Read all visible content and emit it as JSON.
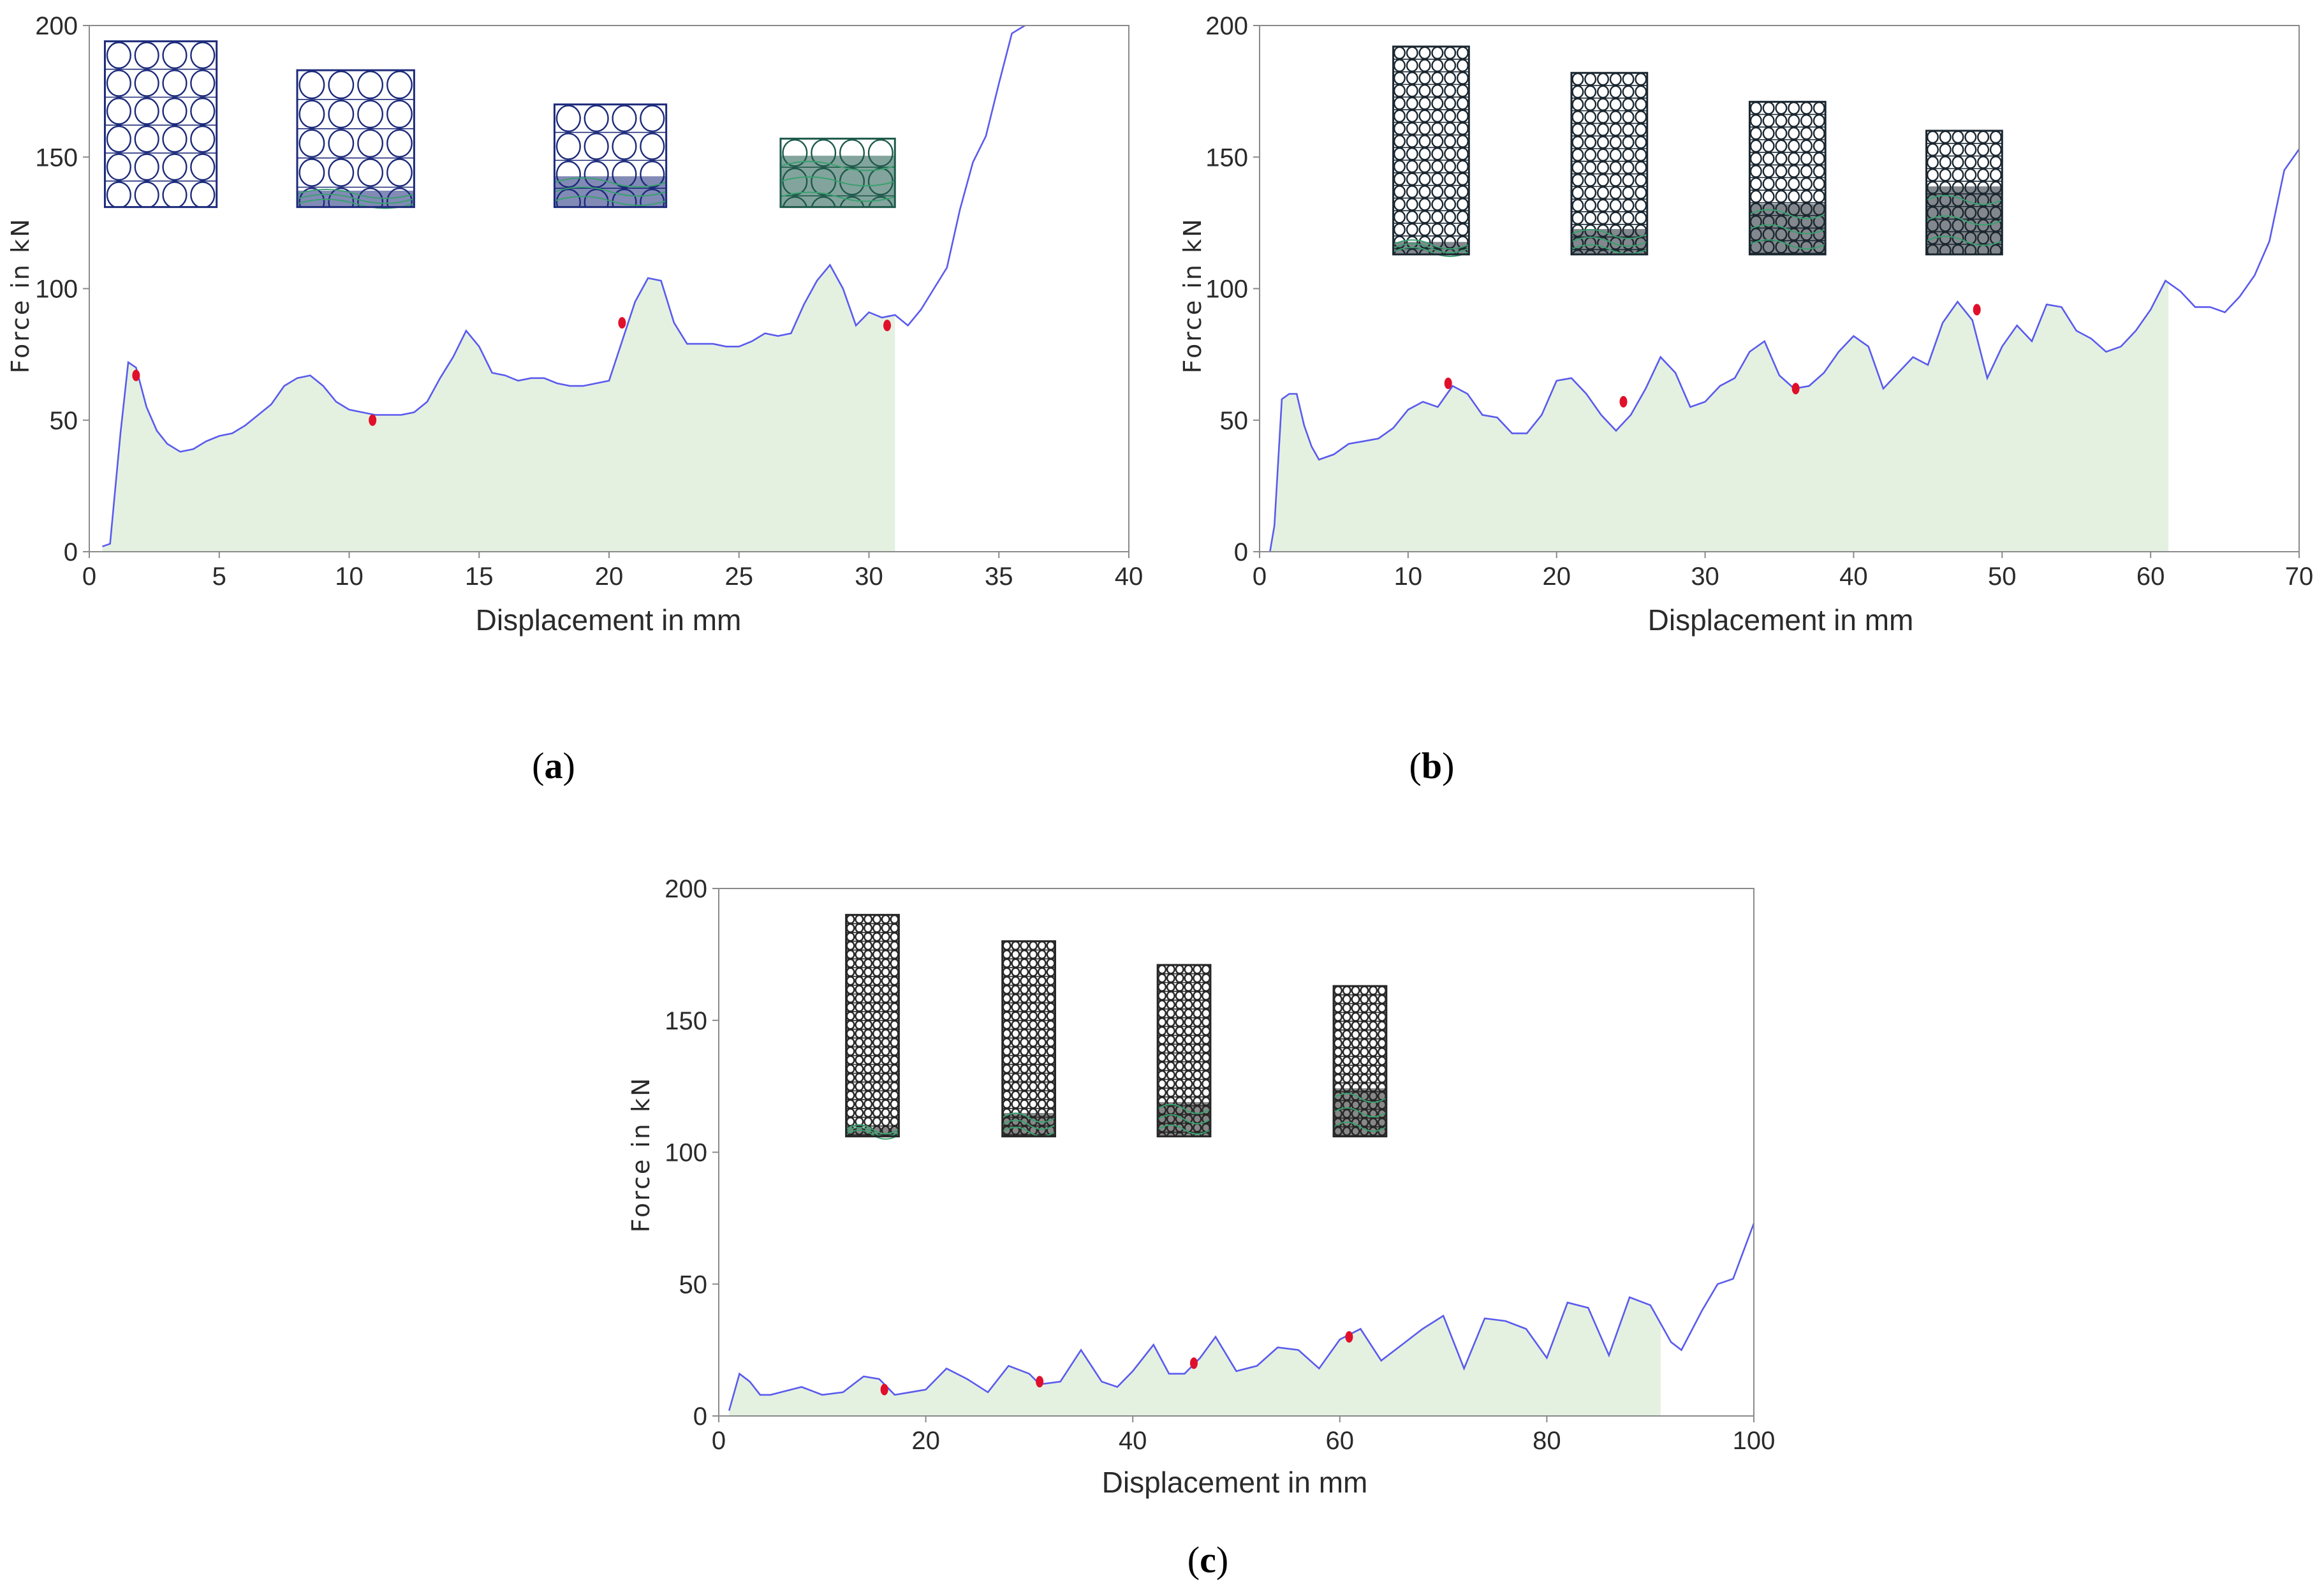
{
  "chart_data": [
    {
      "id": "a",
      "type": "line",
      "caption_letter": "a",
      "xlabel": "Displacement in mm",
      "ylabel": "Force in kN",
      "xlim": [
        0,
        40
      ],
      "ylim": [
        0,
        200
      ],
      "xticks": [
        "0",
        "5",
        "10",
        "15",
        "20",
        "25",
        "30",
        "35",
        "40"
      ],
      "yticks": [
        "0",
        "50",
        "100",
        "150",
        "200"
      ],
      "fill_until_x": 31,
      "x": [
        0.5,
        0.8,
        1.2,
        1.5,
        1.8,
        2.2,
        2.6,
        3.0,
        3.5,
        4.0,
        4.5,
        5.0,
        5.5,
        6.0,
        6.5,
        7.0,
        7.5,
        8.0,
        8.5,
        9.0,
        9.5,
        10.0,
        10.5,
        11.0,
        11.5,
        12.0,
        12.5,
        13.0,
        13.5,
        14.0,
        14.5,
        15.0,
        15.5,
        16.0,
        16.5,
        17.0,
        17.5,
        18.0,
        18.5,
        19.0,
        19.5,
        20.0,
        20.5,
        21.0,
        21.5,
        22.0,
        22.5,
        23.0,
        23.5,
        24.0,
        24.5,
        25.0,
        25.5,
        26.0,
        26.5,
        27.0,
        27.5,
        28.0,
        28.5,
        29.0,
        29.5,
        30.0,
        30.5,
        31.0,
        31.5,
        32.0,
        32.5,
        33.0,
        33.5,
        34.0,
        34.5,
        35.0,
        35.5,
        36.0
      ],
      "y": [
        2,
        3,
        45,
        72,
        70,
        55,
        46,
        41,
        38,
        39,
        42,
        44,
        45,
        48,
        52,
        56,
        63,
        66,
        67,
        63,
        57,
        54,
        53,
        52,
        52,
        52,
        53,
        57,
        66,
        74,
        84,
        78,
        68,
        67,
        65,
        66,
        66,
        64,
        63,
        63,
        64,
        65,
        80,
        95,
        104,
        103,
        87,
        79,
        79,
        79,
        78,
        78,
        80,
        83,
        82,
        83,
        94,
        103,
        109,
        100,
        86,
        91,
        89,
        90,
        86,
        92,
        100,
        108,
        130,
        148,
        158,
        178,
        197,
        200
      ],
      "markers": [
        [
          1.8,
          67
        ],
        [
          10.9,
          50
        ],
        [
          20.5,
          87
        ],
        [
          30.7,
          86
        ]
      ],
      "insets": [
        {
          "x0": 0.6,
          "x1": 4.9,
          "y_top": 194,
          "y_bot": 131,
          "crushed": 0.0,
          "color": "#1c2a7a"
        },
        {
          "x0": 8.0,
          "x1": 12.5,
          "y_top": 183,
          "y_bot": 131,
          "crushed": 0.12,
          "color": "#1c2a7a"
        },
        {
          "x0": 17.9,
          "x1": 22.2,
          "y_top": 170,
          "y_bot": 131,
          "crushed": 0.3,
          "color": "#1c2a7a"
        },
        {
          "x0": 26.6,
          "x1": 31.0,
          "y_top": 157,
          "y_bot": 131,
          "crushed": 0.75,
          "color": "#1d5a4a"
        }
      ]
    },
    {
      "id": "b",
      "type": "line",
      "caption_letter": "b",
      "xlabel": "Displacement in mm",
      "ylabel": "Force in kN",
      "xlim": [
        0,
        70
      ],
      "ylim": [
        0,
        200
      ],
      "xticks": [
        "0",
        "10",
        "20",
        "30",
        "40",
        "50",
        "60",
        "70"
      ],
      "yticks": [
        "0",
        "50",
        "100",
        "150",
        "200"
      ],
      "fill_until_x": 61.2,
      "x": [
        0.7,
        1.0,
        1.5,
        2.0,
        2.5,
        3.0,
        3.5,
        4.0,
        5.0,
        6.0,
        7.0,
        8.0,
        9.0,
        10.0,
        11.0,
        12.0,
        13.0,
        14.0,
        15.0,
        16.0,
        17.0,
        18.0,
        19.0,
        20.0,
        21.0,
        22.0,
        23.0,
        24.0,
        25.0,
        26.0,
        27.0,
        28.0,
        29.0,
        30.0,
        31.0,
        32.0,
        33.0,
        34.0,
        35.0,
        36.0,
        37.0,
        38.0,
        39.0,
        40.0,
        41.0,
        42.0,
        43.0,
        44.0,
        45.0,
        46.0,
        47.0,
        48.0,
        49.0,
        50.0,
        51.0,
        52.0,
        53.0,
        54.0,
        55.0,
        56.0,
        57.0,
        58.0,
        59.0,
        60.0,
        61.0,
        62.0,
        63.0,
        64.0,
        65.0,
        66.0,
        67.0,
        68.0,
        69.0,
        70.0
      ],
      "y": [
        0,
        10,
        58,
        60,
        60,
        48,
        40,
        35,
        37,
        41,
        42,
        43,
        47,
        54,
        57,
        55,
        63,
        60,
        52,
        51,
        45,
        45,
        52,
        65,
        66,
        60,
        52,
        46,
        52,
        62,
        74,
        68,
        55,
        57,
        63,
        66,
        76,
        80,
        67,
        62,
        63,
        68,
        76,
        82,
        78,
        62,
        68,
        74,
        71,
        87,
        95,
        88,
        66,
        78,
        86,
        80,
        94,
        93,
        84,
        81,
        76,
        78,
        84,
        92,
        103,
        99,
        93,
        93,
        91,
        97,
        105,
        118,
        145,
        153
      ],
      "markers": [
        [
          12.7,
          64
        ],
        [
          24.5,
          57
        ],
        [
          36.1,
          62
        ],
        [
          48.3,
          92
        ]
      ],
      "insets": [
        {
          "x0": 9.0,
          "x1": 14.1,
          "y_top": 192,
          "y_bot": 113,
          "crushed": 0.06,
          "color": "#1b2730"
        },
        {
          "x0": 21.0,
          "x1": 26.1,
          "y_top": 182,
          "y_bot": 113,
          "crushed": 0.14,
          "color": "#1b2730"
        },
        {
          "x0": 33.0,
          "x1": 38.1,
          "y_top": 171,
          "y_bot": 113,
          "crushed": 0.33,
          "color": "#1b2730"
        },
        {
          "x0": 44.9,
          "x1": 50.0,
          "y_top": 160,
          "y_bot": 113,
          "crushed": 0.55,
          "color": "#1b2730"
        }
      ]
    },
    {
      "id": "c",
      "type": "line",
      "caption_letter": "c",
      "xlabel": "Displacement in mm",
      "ylabel": "Force in kN",
      "xlim": [
        0,
        100
      ],
      "ylim": [
        0,
        200
      ],
      "xticks": [
        "0",
        "20",
        "40",
        "60",
        "80",
        "100"
      ],
      "yticks": [
        "0",
        "50",
        "100",
        "150",
        "200"
      ],
      "fill_until_x": 91,
      "x": [
        1.0,
        2.0,
        3.0,
        4.0,
        5.0,
        6.0,
        8.0,
        10.0,
        12.0,
        14.0,
        15.5,
        17.0,
        18.5,
        20.0,
        22.0,
        24.0,
        26.0,
        28.0,
        30.0,
        31.0,
        33.0,
        35.0,
        37.0,
        38.5,
        40.0,
        42.0,
        43.5,
        45.0,
        46.5,
        48.0,
        50.0,
        52.0,
        54.0,
        56.0,
        58.0,
        60.0,
        62.0,
        64.0,
        66.0,
        68.0,
        70.0,
        72.0,
        74.0,
        76.0,
        78.0,
        80.0,
        82.0,
        84.0,
        86.0,
        88.0,
        90.0,
        92.0,
        93.0,
        95.0,
        96.5,
        98.0,
        100.0
      ],
      "y": [
        2,
        16,
        13,
        8,
        8,
        9,
        11,
        8,
        9,
        15,
        14,
        8,
        9,
        10,
        18,
        14,
        9,
        19,
        16,
        12,
        13,
        25,
        13,
        11,
        17,
        27,
        16,
        16,
        22,
        30,
        17,
        19,
        26,
        25,
        18,
        29,
        33,
        21,
        27,
        33,
        38,
        18,
        37,
        36,
        33,
        22,
        43,
        41,
        23,
        45,
        42,
        28,
        25,
        40,
        50,
        52,
        73
      ],
      "markers": [
        [
          16,
          10
        ],
        [
          31,
          13
        ],
        [
          45.9,
          20
        ],
        [
          60.9,
          30
        ]
      ],
      "insets": [
        {
          "x0": 12.3,
          "x1": 17.4,
          "y_top": 190,
          "y_bot": 106,
          "crushed": 0.04,
          "color": "#262626"
        },
        {
          "x0": 27.4,
          "x1": 32.5,
          "y_top": 180,
          "y_bot": 106,
          "crushed": 0.12,
          "color": "#262626"
        },
        {
          "x0": 42.4,
          "x1": 47.5,
          "y_top": 171,
          "y_bot": 106,
          "crushed": 0.2,
          "color": "#262626"
        },
        {
          "x0": 59.4,
          "x1": 64.5,
          "y_top": 163,
          "y_bot": 106,
          "crushed": 0.32,
          "color": "#262626"
        }
      ]
    }
  ],
  "colors": {
    "line": "#5a5aee",
    "fill": "#e4f1e1",
    "marker": "#e0102a",
    "axis": "#8a8a8a"
  }
}
